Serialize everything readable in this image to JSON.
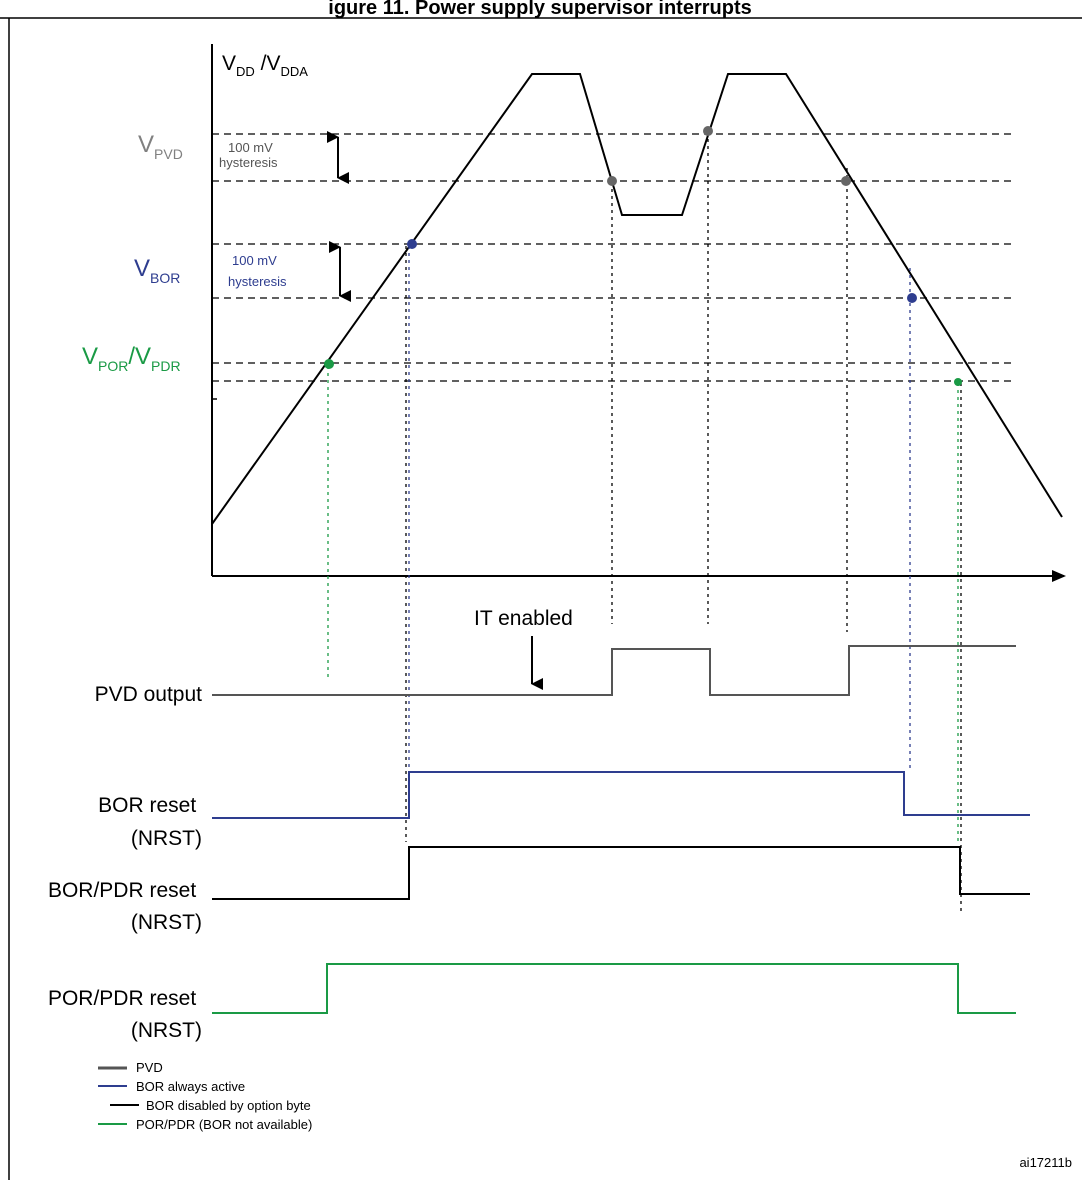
{
  "title": "igure 11. Power supply supervisor interrupts",
  "axis": {
    "y_main_1": "V",
    "y_sub_1": "DD",
    "y_sep": " /V",
    "y_sub_2": "DDA"
  },
  "levels": {
    "pvd": {
      "main": "V",
      "sub": "PVD",
      "color": "#808080"
    },
    "bor": {
      "main": "V",
      "sub": "BOR",
      "color": "#2e3d8f"
    },
    "por": {
      "main_1": "V",
      "sub_1": "POR",
      "sep": "/V",
      "sub_2": "PDR",
      "color": "#1a9a45"
    }
  },
  "hysteresis": {
    "pvd": {
      "line1": "100 mV",
      "line2": "hysteresis"
    },
    "bor": {
      "line1": "100 mV",
      "line2": "hysteresis"
    }
  },
  "annotation": {
    "it_enabled": "IT enabled"
  },
  "signals": {
    "pvd": {
      "label": "PVD output"
    },
    "bor": {
      "label_1": "BOR reset",
      "label_2": "(NRST)"
    },
    "bor_pdr": {
      "label_1": "BOR/PDR reset",
      "label_2": "(NRST)"
    },
    "por_pdr": {
      "label_1": "POR/PDR reset",
      "label_2": "(NRST)"
    }
  },
  "legend": {
    "items": [
      {
        "label": "PVD",
        "color": "#555555"
      },
      {
        "label": "BOR always active",
        "color": "#2e3d8f"
      },
      {
        "label": "BOR disabled by option byte",
        "color": "#000000"
      },
      {
        "label": "POR/PDR (BOR not available)",
        "color": "#1a9a45"
      }
    ]
  },
  "reference": "ai17211b",
  "colors": {
    "pvd_signal": "#555555",
    "pvd_marker": "#666666",
    "bor": "#2e3d8f",
    "por": "#1a9a45",
    "black": "#000000"
  }
}
